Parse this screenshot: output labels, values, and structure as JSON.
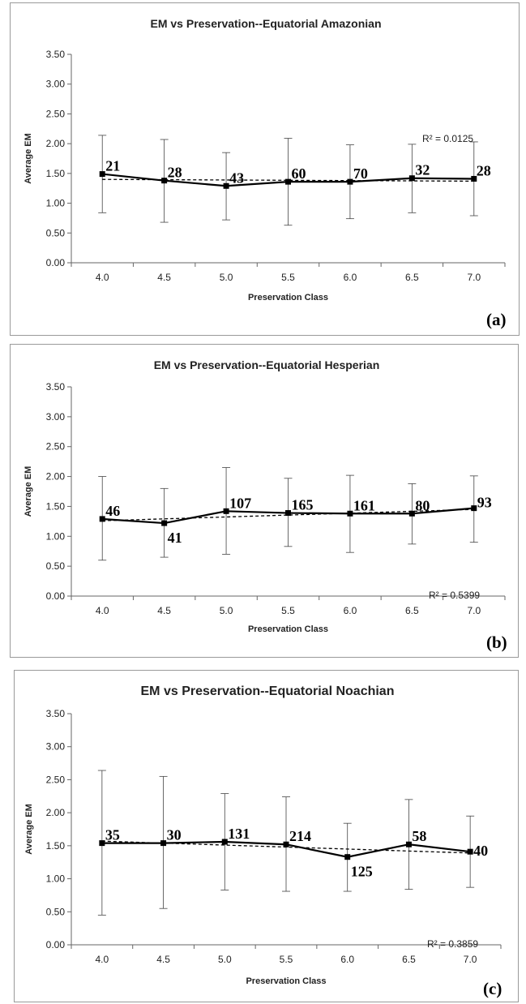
{
  "chart_data": [
    {
      "type": "line",
      "title": "EM vs Preservation--Equatorial Amazonian",
      "xlabel": "Preservation Class",
      "ylabel": "Average EM",
      "x": [
        "4.0",
        "4.5",
        "5.0",
        "5.5",
        "6.0",
        "6.5",
        "7.0"
      ],
      "y_ticks": [
        "0.00",
        "0.50",
        "1.00",
        "1.50",
        "2.00",
        "2.50",
        "3.00",
        "3.50"
      ],
      "ylim": [
        0,
        3.5
      ],
      "series": [
        {
          "values": [
            1.49,
            1.38,
            1.29,
            1.36,
            1.36,
            1.42,
            1.41
          ],
          "error_upper": [
            2.14,
            2.07,
            1.85,
            2.09,
            1.98,
            1.99,
            2.03
          ],
          "error_lower": [
            0.84,
            0.68,
            0.72,
            0.63,
            0.74,
            0.84,
            0.79
          ],
          "counts": [
            "21",
            "28",
            "43",
            "60",
            "70",
            "32",
            "28"
          ]
        }
      ],
      "trendline": {
        "start": 1.4,
        "end": 1.37
      },
      "r2_label": "R² = 0.0125",
      "panel_label": "(a)",
      "grid": false
    },
    {
      "type": "line",
      "title": "EM vs Preservation--Equatorial Hesperian",
      "xlabel": "Preservation Class",
      "ylabel": "Average EM",
      "x": [
        "4.0",
        "4.5",
        "5.0",
        "5.5",
        "6.0",
        "6.5",
        "7.0"
      ],
      "y_ticks": [
        "0.00",
        "0.50",
        "1.00",
        "1.50",
        "2.00",
        "2.50",
        "3.00",
        "3.50"
      ],
      "ylim": [
        0,
        3.5
      ],
      "series": [
        {
          "values": [
            1.29,
            1.22,
            1.42,
            1.39,
            1.38,
            1.38,
            1.47
          ],
          "error_upper": [
            2.0,
            1.8,
            2.15,
            1.97,
            2.02,
            1.88,
            2.01
          ],
          "error_lower": [
            0.6,
            0.65,
            0.7,
            0.83,
            0.73,
            0.87,
            0.9
          ],
          "counts": [
            "46",
            "41",
            "107",
            "165",
            "161",
            "80",
            "93"
          ]
        }
      ],
      "trendline": {
        "start": 1.26,
        "end": 1.45
      },
      "r2_label": "R² = 0.5399",
      "panel_label": "(b)",
      "grid": false
    },
    {
      "type": "line",
      "title": "EM vs Preservation--Equatorial Noachian",
      "xlabel": "Preservation Class",
      "ylabel": "Average EM",
      "x": [
        "4.0",
        "4.5",
        "5.0",
        "5.5",
        "6.0",
        "6.5",
        "7.0"
      ],
      "y_ticks": [
        "0.00",
        "0.50",
        "1.00",
        "1.50",
        "2.00",
        "2.50",
        "3.00",
        "3.50"
      ],
      "ylim": [
        0,
        3.5
      ],
      "series": [
        {
          "values": [
            1.54,
            1.54,
            1.56,
            1.52,
            1.33,
            1.52,
            1.41
          ],
          "error_upper": [
            2.64,
            2.55,
            2.29,
            2.24,
            1.84,
            2.2,
            1.95
          ],
          "error_lower": [
            0.45,
            0.55,
            0.83,
            0.81,
            0.81,
            0.84,
            0.87
          ],
          "counts": [
            "35",
            "30",
            "131",
            "214",
            "125",
            "58",
            "40"
          ]
        }
      ],
      "trendline": {
        "start": 1.57,
        "end": 1.39
      },
      "r2_label": "R² = 0.3859",
      "panel_label": "(c)",
      "grid": false
    }
  ]
}
